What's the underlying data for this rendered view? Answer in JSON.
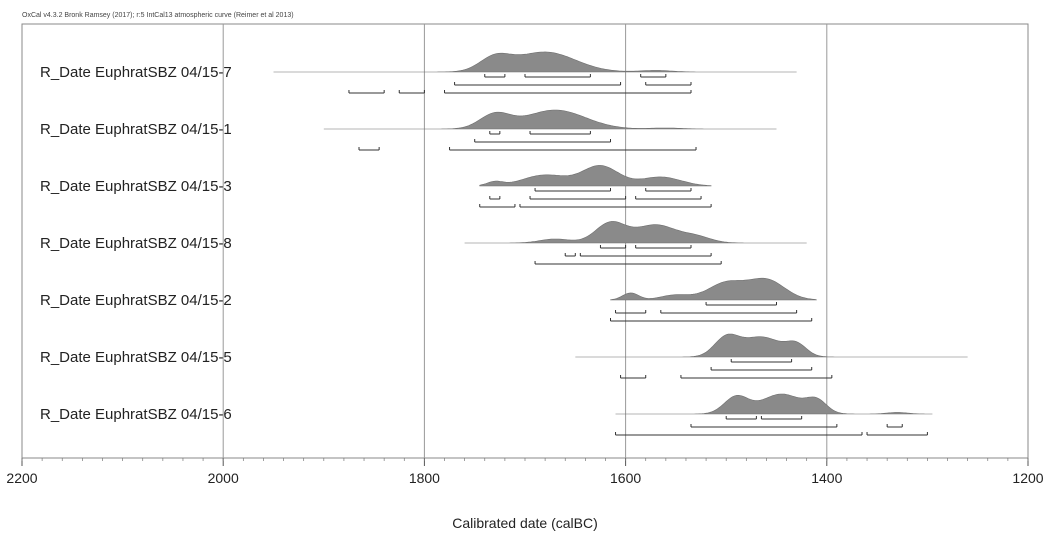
{
  "header": "OxCal v4.3.2 Bronk Ramsey (2017); r:5 IntCal13 atmospheric curve (Reimer et al 2013)",
  "chart_data": {
    "type": "area",
    "xlabel": "Calibrated date (calBC)",
    "xlim": [
      2200,
      1200
    ],
    "gridlines": [
      2000,
      1800,
      1600,
      1400
    ],
    "ticks": [
      2200,
      2000,
      1800,
      1600,
      1400,
      1200
    ],
    "tick_labels": [
      "2200",
      "2000",
      "1800",
      "1600",
      "1400",
      "1200"
    ],
    "color": "#8a8a8a",
    "series": [
      {
        "name": "R_Date EuphratSBZ 04/15-7",
        "range": [
          1950,
          1430
        ],
        "peaks": [
          {
            "c": 1730,
            "w": 15,
            "h": 0.65
          },
          {
            "c": 1680,
            "w": 30,
            "h": 1.0
          },
          {
            "c": 1570,
            "w": 15,
            "h": 0.08
          }
        ],
        "ranges_68": [
          [
            1740,
            1720
          ],
          [
            1700,
            1635
          ],
          [
            1585,
            1560
          ]
        ],
        "ranges_95": [
          [
            1770,
            1605
          ],
          [
            1580,
            1535
          ]
        ],
        "ranges_other": [
          [
            1875,
            1840
          ],
          [
            1825,
            1800
          ],
          [
            1780,
            1535
          ]
        ]
      },
      {
        "name": "R_Date EuphratSBZ 04/15-1",
        "range": [
          1900,
          1450
        ],
        "peaks": [
          {
            "c": 1730,
            "w": 15,
            "h": 0.7
          },
          {
            "c": 1670,
            "w": 30,
            "h": 0.95
          },
          {
            "c": 1560,
            "w": 15,
            "h": 0.05
          }
        ],
        "ranges_68": [
          [
            1735,
            1725
          ],
          [
            1695,
            1635
          ]
        ],
        "ranges_95": [
          [
            1750,
            1615
          ]
        ],
        "ranges_other": [
          [
            1865,
            1845
          ],
          [
            1775,
            1530
          ]
        ]
      },
      {
        "name": "R_Date EuphratSBZ 04/15-3",
        "range": [
          1745,
          1515
        ],
        "peaks": [
          {
            "c": 1730,
            "w": 8,
            "h": 0.2
          },
          {
            "c": 1680,
            "w": 22,
            "h": 0.55
          },
          {
            "c": 1625,
            "w": 18,
            "h": 1.0
          },
          {
            "c": 1565,
            "w": 20,
            "h": 0.45
          }
        ],
        "ranges_68": [
          [
            1690,
            1615
          ],
          [
            1580,
            1535
          ]
        ],
        "ranges_95": [
          [
            1735,
            1725
          ],
          [
            1695,
            1600
          ],
          [
            1590,
            1525
          ]
        ],
        "ranges_other": [
          [
            1745,
            1710
          ],
          [
            1705,
            1515
          ]
        ]
      },
      {
        "name": "R_Date EuphratSBZ 04/15-8",
        "range": [
          1760,
          1420
        ],
        "peaks": [
          {
            "c": 1615,
            "w": 15,
            "h": 1.0
          },
          {
            "c": 1570,
            "w": 20,
            "h": 0.9
          },
          {
            "c": 1530,
            "w": 15,
            "h": 0.3
          },
          {
            "c": 1670,
            "w": 15,
            "h": 0.2
          }
        ],
        "ranges_68": [
          [
            1625,
            1600
          ],
          [
            1590,
            1535
          ]
        ],
        "ranges_95": [
          [
            1660,
            1650
          ],
          [
            1645,
            1515
          ]
        ],
        "ranges_other": [
          [
            1690,
            1505
          ]
        ]
      },
      {
        "name": "R_Date EuphratSBZ 04/15-2",
        "range": [
          1615,
          1410
        ],
        "peaks": [
          {
            "c": 1595,
            "w": 8,
            "h": 0.35
          },
          {
            "c": 1500,
            "w": 18,
            "h": 0.85
          },
          {
            "c": 1460,
            "w": 18,
            "h": 1.0
          },
          {
            "c": 1550,
            "w": 15,
            "h": 0.25
          }
        ],
        "ranges_68": [
          [
            1520,
            1450
          ]
        ],
        "ranges_95": [
          [
            1610,
            1580
          ],
          [
            1565,
            1430
          ]
        ],
        "ranges_other": [
          [
            1615,
            1415
          ]
        ]
      },
      {
        "name": "R_Date EuphratSBZ 04/15-5",
        "range": [
          1650,
          1260
        ],
        "peaks": [
          {
            "c": 1500,
            "w": 12,
            "h": 0.9
          },
          {
            "c": 1465,
            "w": 20,
            "h": 1.0
          },
          {
            "c": 1430,
            "w": 10,
            "h": 0.55
          }
        ],
        "ranges_68": [
          [
            1495,
            1435
          ]
        ],
        "ranges_95": [
          [
            1515,
            1415
          ]
        ],
        "ranges_other": [
          [
            1605,
            1580
          ],
          [
            1545,
            1395
          ]
        ]
      },
      {
        "name": "R_Date EuphratSBZ 04/15-6",
        "range": [
          1610,
          1295
        ],
        "peaks": [
          {
            "c": 1490,
            "w": 12,
            "h": 0.85
          },
          {
            "c": 1445,
            "w": 20,
            "h": 1.0
          },
          {
            "c": 1410,
            "w": 10,
            "h": 0.6
          },
          {
            "c": 1330,
            "w": 10,
            "h": 0.08
          }
        ],
        "ranges_68": [
          [
            1500,
            1470
          ],
          [
            1465,
            1425
          ]
        ],
        "ranges_95": [
          [
            1535,
            1390
          ],
          [
            1340,
            1325
          ]
        ],
        "ranges_other": [
          [
            1610,
            1365
          ],
          [
            1360,
            1300
          ]
        ]
      }
    ]
  }
}
